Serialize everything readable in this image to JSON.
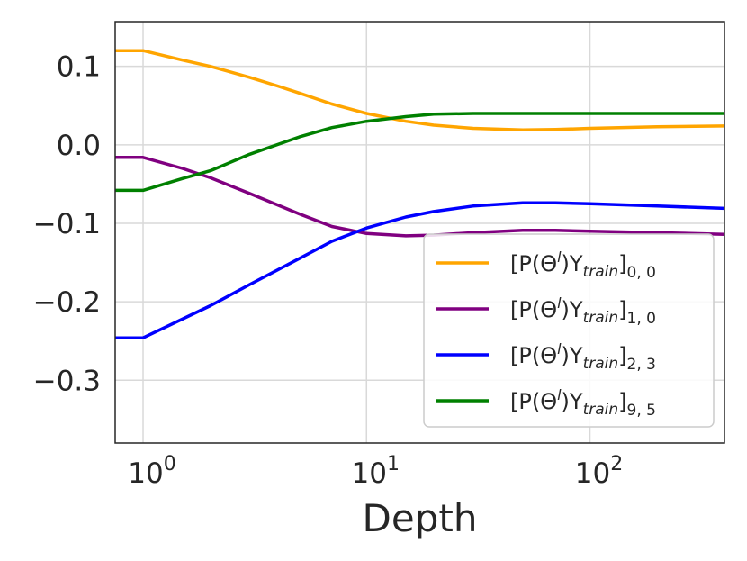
{
  "chart_data": {
    "type": "line",
    "xscale": "log",
    "xlabel": "Depth",
    "ylabel": "",
    "xlim": [
      0.75,
      400
    ],
    "ylim": [
      -0.38,
      0.157
    ],
    "grid": true,
    "legend_position": "lower-right",
    "xticks": [
      {
        "value": 1,
        "base": "10",
        "exp": "0"
      },
      {
        "value": 10,
        "base": "10",
        "exp": "1"
      },
      {
        "value": 100,
        "base": "10",
        "exp": "2"
      }
    ],
    "yticks": [
      {
        "value": 0.1,
        "label": "0.1"
      },
      {
        "value": 0.0,
        "label": "0.0"
      },
      {
        "value": -0.1,
        "label": "−0.1"
      },
      {
        "value": -0.2,
        "label": "−0.2"
      },
      {
        "value": -0.3,
        "label": "−0.3"
      }
    ],
    "series": [
      {
        "name": "[P(Θ^l)Y_train]_{0,0}",
        "label_main": "[P(Θ",
        "label_sup": "l",
        "label_mid1": ")Y",
        "label_train": "train",
        "label_mid2": "]",
        "label_sub": "0, 0",
        "color": "#ffa500",
        "points": [
          [
            0.75,
            0.12
          ],
          [
            1,
            0.12
          ],
          [
            1.5,
            0.108
          ],
          [
            2,
            0.1
          ],
          [
            3,
            0.086
          ],
          [
            4,
            0.075
          ],
          [
            5,
            0.066
          ],
          [
            7,
            0.052
          ],
          [
            10,
            0.04
          ],
          [
            15,
            0.03
          ],
          [
            20,
            0.025
          ],
          [
            30,
            0.021
          ],
          [
            50,
            0.019
          ],
          [
            70,
            0.0195
          ],
          [
            100,
            0.021
          ],
          [
            200,
            0.023
          ],
          [
            400,
            0.024
          ]
        ]
      },
      {
        "name": "[P(Θ^l)Y_train]_{1,0}",
        "label_main": "[P(Θ",
        "label_sup": "l",
        "label_mid1": ")Y",
        "label_train": "train",
        "label_mid2": "]",
        "label_sub": "1, 0",
        "color": "#800080",
        "points": [
          [
            0.75,
            -0.016
          ],
          [
            1,
            -0.016
          ],
          [
            1.5,
            -0.03
          ],
          [
            2,
            -0.042
          ],
          [
            3,
            -0.062
          ],
          [
            5,
            -0.088
          ],
          [
            7,
            -0.104
          ],
          [
            10,
            -0.113
          ],
          [
            15,
            -0.116
          ],
          [
            20,
            -0.115
          ],
          [
            30,
            -0.112
          ],
          [
            50,
            -0.109
          ],
          [
            70,
            -0.109
          ],
          [
            100,
            -0.11
          ],
          [
            200,
            -0.112
          ],
          [
            400,
            -0.114
          ]
        ]
      },
      {
        "name": "[P(Θ^l)Y_train]_{2,3}",
        "label_main": "[P(Θ",
        "label_sup": "l",
        "label_mid1": ")Y",
        "label_train": "train",
        "label_mid2": "]",
        "label_sub": "2, 3",
        "color": "#0000ff",
        "points": [
          [
            0.75,
            -0.246
          ],
          [
            1,
            -0.246
          ],
          [
            2,
            -0.205
          ],
          [
            3,
            -0.178
          ],
          [
            5,
            -0.145
          ],
          [
            7,
            -0.123
          ],
          [
            10,
            -0.106
          ],
          [
            15,
            -0.092
          ],
          [
            20,
            -0.085
          ],
          [
            30,
            -0.078
          ],
          [
            50,
            -0.074
          ],
          [
            70,
            -0.074
          ],
          [
            100,
            -0.075
          ],
          [
            200,
            -0.078
          ],
          [
            400,
            -0.081
          ]
        ]
      },
      {
        "name": "[P(Θ^l)Y_train]_{9,5}",
        "label_main": "[P(Θ",
        "label_sup": "l",
        "label_mid1": ")Y",
        "label_train": "train",
        "label_mid2": "]",
        "label_sub": "9, 5",
        "color": "#008000",
        "points": [
          [
            0.75,
            -0.058
          ],
          [
            1,
            -0.058
          ],
          [
            1.5,
            -0.043
          ],
          [
            2,
            -0.033
          ],
          [
            3,
            -0.012
          ],
          [
            5,
            0.01
          ],
          [
            7,
            0.022
          ],
          [
            10,
            0.03
          ],
          [
            15,
            0.036
          ],
          [
            20,
            0.039
          ],
          [
            30,
            0.04
          ],
          [
            50,
            0.04
          ],
          [
            100,
            0.04
          ],
          [
            200,
            0.04
          ],
          [
            400,
            0.04
          ]
        ]
      }
    ]
  }
}
